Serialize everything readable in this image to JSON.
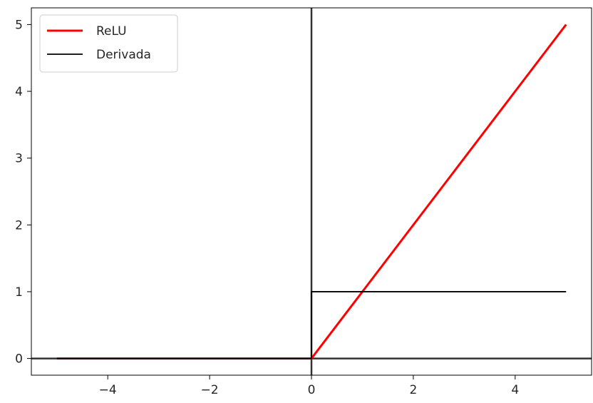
{
  "chart_data": {
    "type": "line",
    "title": "",
    "xlabel": "",
    "ylabel": "",
    "xlim": [
      -5.5,
      5.5
    ],
    "ylim": [
      -0.25,
      5.25
    ],
    "xticks": [
      -4,
      -2,
      0,
      2,
      4
    ],
    "xtick_labels": [
      "−4",
      "−2",
      "0",
      "2",
      "4"
    ],
    "yticks": [
      0,
      1,
      2,
      3,
      4,
      5
    ],
    "ytick_labels": [
      "0",
      "1",
      "2",
      "3",
      "4",
      "5"
    ],
    "grid": false,
    "legend_position": "upper-left",
    "axis_lines": {
      "x": 0,
      "y": 0,
      "color": "#333333"
    },
    "series": [
      {
        "name": "ReLU",
        "color": "#ff0000",
        "x": [
          -5,
          0,
          5
        ],
        "y": [
          0,
          0,
          5
        ]
      },
      {
        "name": "Derivada",
        "color": "#000000",
        "x": [
          -5,
          0,
          0,
          5
        ],
        "y": [
          0,
          0,
          1,
          1
        ]
      }
    ]
  }
}
